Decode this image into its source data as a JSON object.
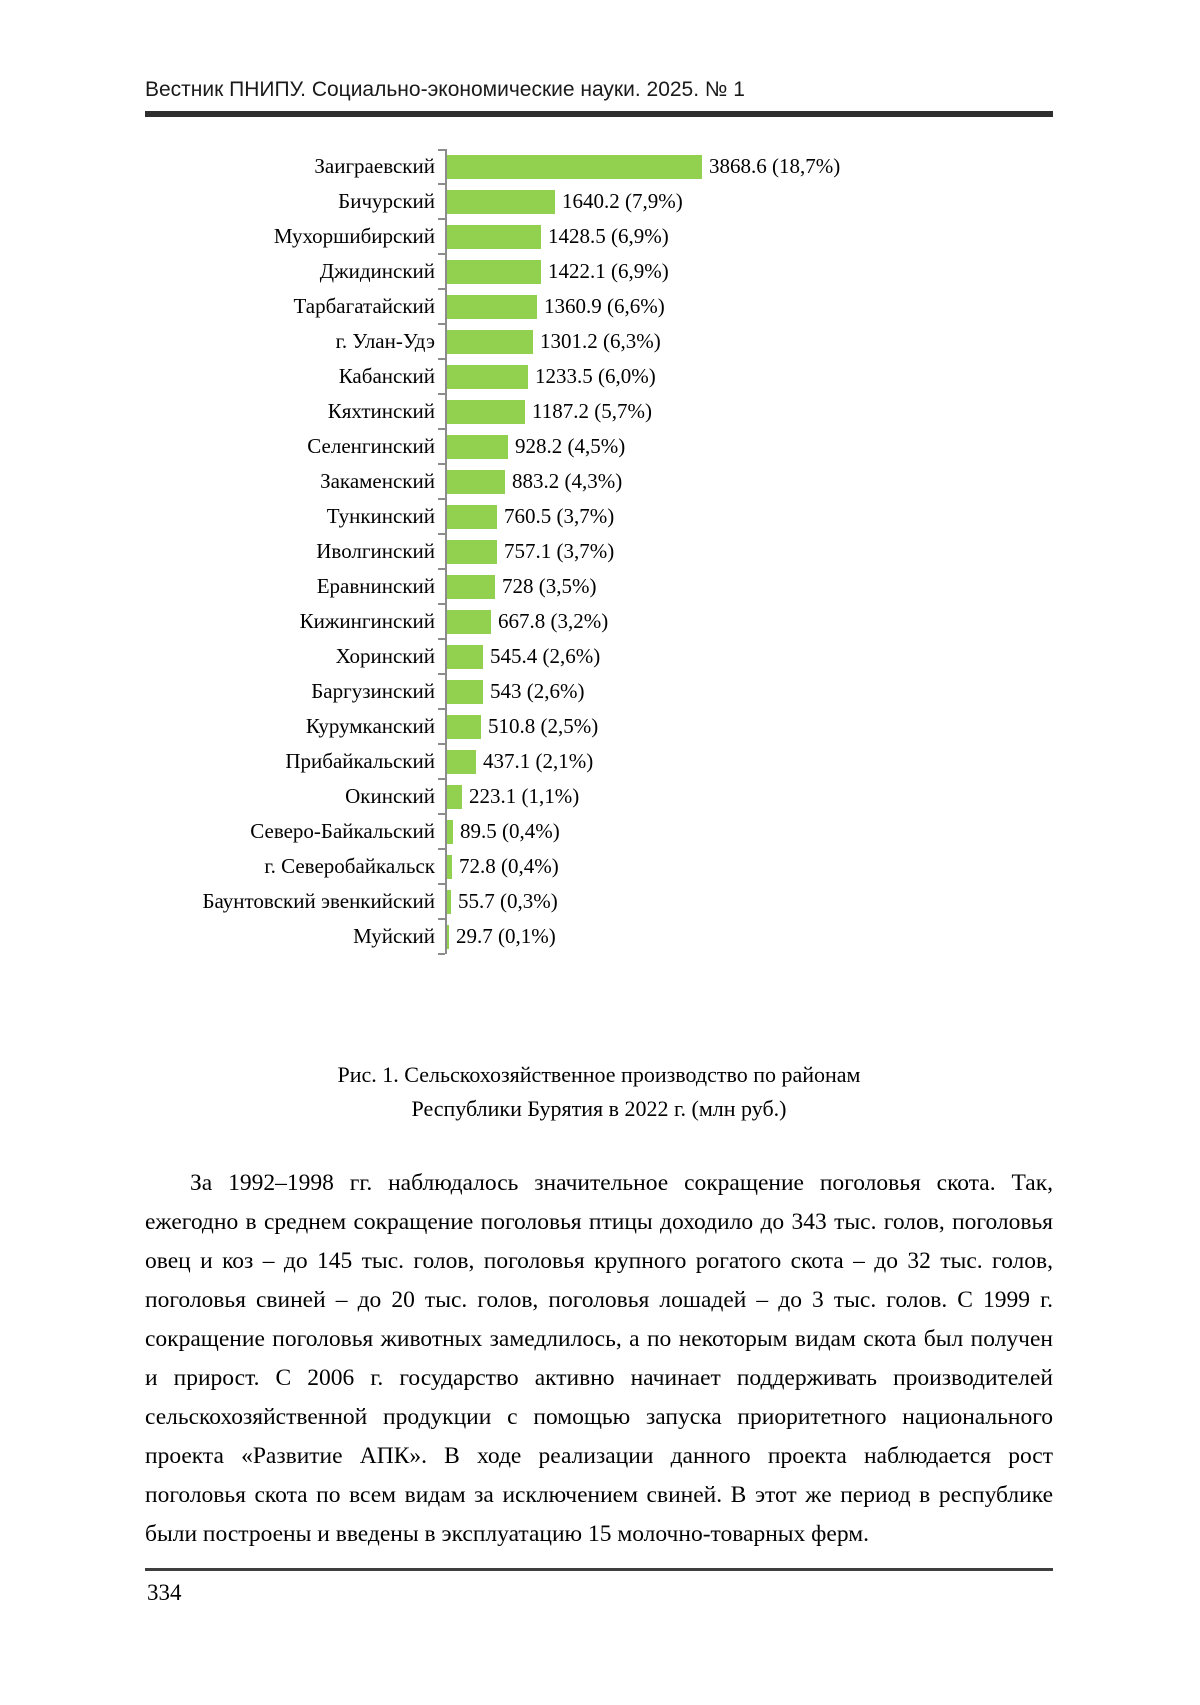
{
  "header": {
    "journal_line": "Вестник ПНИПУ. Социально-экономические науки. 2025. № 1"
  },
  "chart_data": {
    "type": "bar",
    "orientation": "horizontal",
    "title": "Рис. 1. Сельскохозяйственное производство по районам Республики Бурятия в 2022 г. (млн руб.)",
    "xlabel": "",
    "ylabel": "",
    "grid": false,
    "legend": "none",
    "xlim": [
      0,
      4250
    ],
    "bar_color": "#92d050",
    "axis_color": "#8c8c8c",
    "categories": [
      "Заиграевский",
      "Бичурский",
      "Мухоршибирский",
      "Джидинский",
      "Тарбагатайский",
      "г. Улан-Удэ",
      "Кабанский",
      "Кяхтинский",
      "Селенгинский",
      "Закаменский",
      "Тункинский",
      "Иволгинский",
      "Еравнинский",
      "Кижингинский",
      "Хоринский",
      "Баргузинский",
      "Курумканский",
      "Прибайкальский",
      "Окинский",
      "Северо-Байкальский",
      "г. Северобайкальск",
      "Баунтовский эвенкийский",
      "Муйский"
    ],
    "values": [
      3868.6,
      1640.2,
      1428.5,
      1422.1,
      1360.9,
      1301.2,
      1233.5,
      1187.2,
      928.2,
      883.2,
      760.5,
      757.1,
      728,
      667.8,
      545.4,
      543,
      510.8,
      437.1,
      223.1,
      89.5,
      72.8,
      55.7,
      29.7
    ],
    "data_labels": [
      "3868.6 (18,7%)",
      "1640.2 (7,9%)",
      "1428.5 (6,9%)",
      "1422.1 (6,9%)",
      "1360.9 (6,6%)",
      "1301.2 (6,3%)",
      "1233.5 (6,0%)",
      "1187.2 (5,7%)",
      "928.2 (4,5%)",
      "883.2 (4,3%)",
      "760.5 (3,7%)",
      "757.1 (3,7%)",
      "728 (3,5%)",
      "667.8 (3,2%)",
      "545.4 (2,6%)",
      "543 (2,6%)",
      "510.8 (2,5%)",
      "437.1 (2,1%)",
      "223.1 (1,1%)",
      "89.5 (0,4%)",
      "72.8 (0,4%)",
      "55.7 (0,3%)",
      "29.7 (0,1%)"
    ]
  },
  "caption": {
    "line1": "Рис. 1. Сельскохозяйственное производство по районам",
    "line2": "Республики Бурятия в 2022 г. (млн руб.)"
  },
  "body": {
    "paragraph": "За 1992–1998 гг. наблюдалось значительное сокращение поголовья скота. Так, ежегодно в среднем сокращение поголовья птицы доходило до 343 тыс. голов, поголовья овец и коз – до 145 тыс. голов, поголовья крупного рогатого скота – до 32 тыс. голов, поголовья свиней – до 20 тыс. голов, поголовья лошадей – до 3 тыс. голов. С 1999 г. сокращение поголовья животных замедлилось, а по некоторым видам скота был получен и прирост. С 2006 г. государство активно начинает поддерживать производителей сельскохозяйственной продукции с помощью запуска приоритетного национального проекта «Развитие АПК». В ходе реализации данного проекта наблюдается рост поголовья скота по всем видам за исключением свиней. В этот же период в республике были построены и введены в эксплуатацию 15 молочно-товарных ферм."
  },
  "footer": {
    "page_number": "334"
  }
}
